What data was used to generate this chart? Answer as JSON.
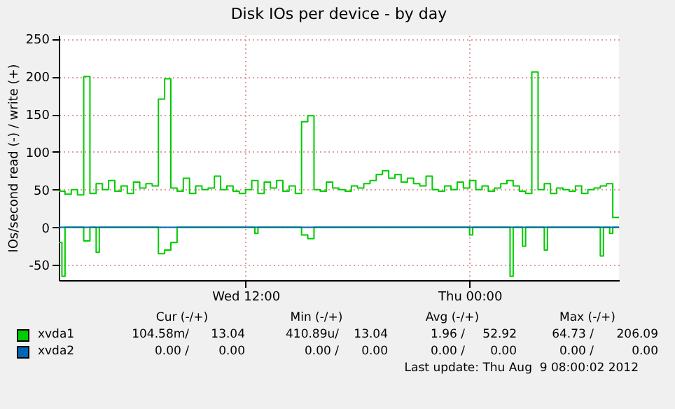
{
  "chart_data": {
    "type": "step",
    "title": "Disk IOs per device - by day",
    "ylabel": "IOs/second read (-) / write (+)",
    "xlim": [
      "2012-08-08T02:00",
      "2012-08-09T08:00"
    ],
    "xticks": [
      {
        "value": "2012-08-08T12:00",
        "label": "Wed 12:00"
      },
      {
        "value": "2012-08-09T00:00",
        "label": "Thu 00:00"
      }
    ],
    "ylim": [
      -70,
      255
    ],
    "yticks": [
      -50,
      0,
      50,
      100,
      150,
      200,
      250
    ],
    "grid": true,
    "legend": "bottom",
    "series": [
      {
        "name": "xvda1",
        "color": "#00cc00",
        "x": [
          "2012-08-08T02:00",
          "2012-08-08T02:20",
          "2012-08-08T02:40",
          "2012-08-08T03:00",
          "2012-08-08T03:20",
          "2012-08-08T03:40",
          "2012-08-08T04:00",
          "2012-08-08T04:20",
          "2012-08-08T04:40",
          "2012-08-08T05:00",
          "2012-08-08T05:20",
          "2012-08-08T05:40",
          "2012-08-08T06:00",
          "2012-08-08T06:20",
          "2012-08-08T06:40",
          "2012-08-08T07:00",
          "2012-08-08T07:20",
          "2012-08-08T07:40",
          "2012-08-08T08:00",
          "2012-08-08T08:20",
          "2012-08-08T08:40",
          "2012-08-08T09:00",
          "2012-08-08T09:20",
          "2012-08-08T09:40",
          "2012-08-08T10:00",
          "2012-08-08T10:20",
          "2012-08-08T10:40",
          "2012-08-08T11:00",
          "2012-08-08T11:20",
          "2012-08-08T11:40",
          "2012-08-08T12:00",
          "2012-08-08T12:20",
          "2012-08-08T12:40",
          "2012-08-08T13:00",
          "2012-08-08T13:20",
          "2012-08-08T13:40",
          "2012-08-08T14:00",
          "2012-08-08T14:20",
          "2012-08-08T14:40",
          "2012-08-08T15:00",
          "2012-08-08T15:20",
          "2012-08-08T15:40",
          "2012-08-08T16:00",
          "2012-08-08T16:20",
          "2012-08-08T16:40",
          "2012-08-08T17:00",
          "2012-08-08T17:20",
          "2012-08-08T17:40",
          "2012-08-08T18:00",
          "2012-08-08T18:20",
          "2012-08-08T18:40",
          "2012-08-08T19:00",
          "2012-08-08T19:20",
          "2012-08-08T19:40",
          "2012-08-08T20:00",
          "2012-08-08T20:20",
          "2012-08-08T20:40",
          "2012-08-08T21:00",
          "2012-08-08T21:20",
          "2012-08-08T21:40",
          "2012-08-08T22:00",
          "2012-08-08T22:20",
          "2012-08-08T22:40",
          "2012-08-08T23:00",
          "2012-08-08T23:20",
          "2012-08-08T23:40",
          "2012-08-09T00:00",
          "2012-08-09T00:20",
          "2012-08-09T00:40",
          "2012-08-09T01:00",
          "2012-08-09T01:20",
          "2012-08-09T01:40",
          "2012-08-09T02:00",
          "2012-08-09T02:20",
          "2012-08-09T02:40",
          "2012-08-09T03:00",
          "2012-08-09T03:20",
          "2012-08-09T03:40",
          "2012-08-09T04:00",
          "2012-08-09T04:20",
          "2012-08-09T04:40",
          "2012-08-09T05:00",
          "2012-08-09T05:20",
          "2012-08-09T05:40",
          "2012-08-09T06:00",
          "2012-08-09T06:20",
          "2012-08-09T06:40",
          "2012-08-09T07:00",
          "2012-08-09T07:20",
          "2012-08-09T07:40",
          "2012-08-09T08:00"
        ],
        "values": [
          48,
          44,
          50,
          43,
          200,
          45,
          58,
          50,
          62,
          48,
          55,
          45,
          60,
          52,
          58,
          55,
          170,
          197,
          52,
          48,
          65,
          45,
          55,
          50,
          52,
          68,
          50,
          55,
          48,
          45,
          50,
          62,
          45,
          60,
          52,
          62,
          48,
          55,
          45,
          140,
          148,
          50,
          48,
          60,
          52,
          50,
          48,
          55,
          52,
          58,
          62,
          70,
          75,
          65,
          70,
          60,
          65,
          58,
          55,
          68,
          50,
          48,
          55,
          50,
          60,
          52,
          62,
          50,
          55,
          48,
          52,
          58,
          62,
          55,
          48,
          45,
          206,
          50,
          58,
          45,
          52,
          50,
          48,
          55,
          45,
          50,
          52,
          55,
          58,
          13,
          13
        ]
      },
      {
        "color": "#00cc00",
        "x": [
          "2012-08-08T02:00",
          "2012-08-08T02:10",
          "2012-08-08T02:20",
          "2012-08-08T03:20",
          "2012-08-08T03:40",
          "2012-08-08T04:00",
          "2012-08-08T04:10",
          "2012-08-08T07:20",
          "2012-08-08T07:40",
          "2012-08-08T08:00",
          "2012-08-08T08:20",
          "2012-08-08T12:30",
          "2012-08-08T12:40",
          "2012-08-08T15:00",
          "2012-08-08T15:20",
          "2012-08-08T15:40",
          "2012-08-09T00:00",
          "2012-08-09T00:10",
          "2012-08-09T02:10",
          "2012-08-09T02:20",
          "2012-08-09T02:50",
          "2012-08-09T03:00",
          "2012-08-09T04:00",
          "2012-08-09T04:10",
          "2012-08-09T07:00",
          "2012-08-09T07:10",
          "2012-08-09T07:30",
          "2012-08-09T07:40",
          "2012-08-09T08:00"
        ],
        "values": [
          -20,
          -65,
          0,
          -18,
          0,
          -33,
          0,
          -35,
          -30,
          -20,
          0,
          -8,
          0,
          -10,
          -15,
          0,
          -10,
          0,
          -65,
          0,
          -25,
          0,
          -30,
          0,
          -38,
          0,
          -8,
          0,
          0
        ]
      },
      {
        "name": "xvda2",
        "color": "#0066b3",
        "x": [
          "2012-08-08T02:00",
          "2012-08-09T08:00"
        ],
        "values": [
          0,
          0
        ]
      }
    ],
    "annotations": [
      "Cur (-/+)",
      "Min (-/+)",
      "Avg (-/+)",
      "Max (-/+)",
      "104.58m/",
      "13.04",
      "410.89u/",
      "13.04",
      "1.96 /",
      "52.92",
      "64.73 /",
      "206.09",
      "0.00 /",
      "0.00",
      "0.00 /",
      "0.00",
      "0.00 /",
      "0.00",
      "0.00 /",
      "0.00",
      "Last update: Thu Aug  9 08:00:02 2012"
    ]
  }
}
